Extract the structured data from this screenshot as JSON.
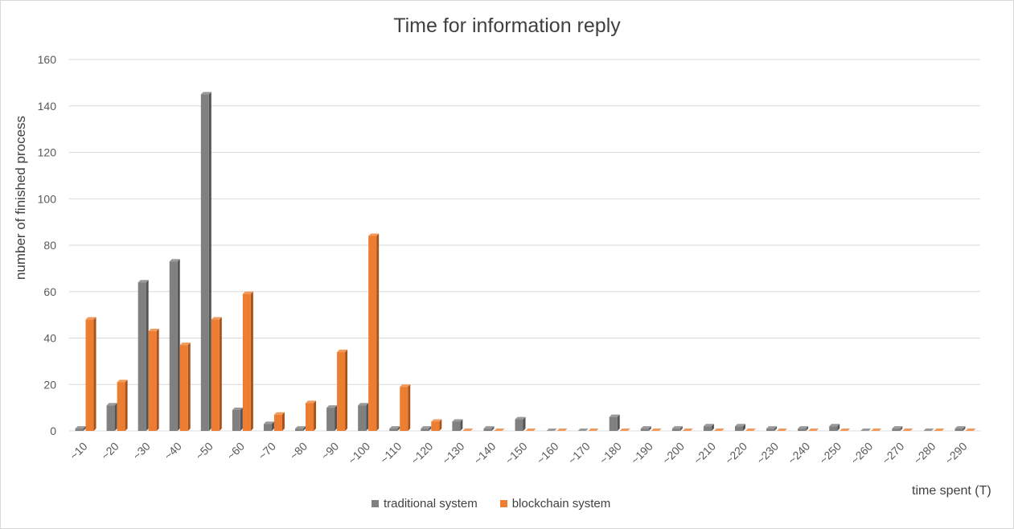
{
  "chart_data": {
    "type": "bar",
    "title": "Time for information reply",
    "xlabel": "time spent (T)",
    "ylabel": "number of finished process",
    "ylim": [
      0,
      160
    ],
    "yticks": [
      0,
      20,
      40,
      60,
      80,
      100,
      120,
      140,
      160
    ],
    "grid": true,
    "legend_position": "bottom",
    "categories": [
      "~10",
      "~20",
      "~30",
      "~40",
      "~50",
      "~60",
      "~70",
      "~80",
      "~90",
      "~100",
      "~110",
      "~120",
      "~130",
      "~140",
      "~150",
      "~160",
      "~170",
      "~180",
      "~190",
      "~200",
      "~210",
      "~220",
      "~230",
      "~240",
      "~250",
      "~260",
      "~270",
      "~280",
      "~290"
    ],
    "series": [
      {
        "name": "traditional system",
        "color": "#808080",
        "values": [
          1,
          11,
          64,
          73,
          145,
          9,
          3,
          1,
          10,
          11,
          1,
          1,
          4,
          1,
          5,
          0,
          0,
          6,
          1,
          1,
          2,
          2,
          1,
          1,
          2,
          0,
          1,
          0,
          1
        ]
      },
      {
        "name": "blockchain system",
        "color": "#ed7d31",
        "values": [
          48,
          21,
          43,
          37,
          48,
          59,
          7,
          12,
          34,
          84,
          19,
          4,
          0,
          0,
          0,
          0,
          0,
          0,
          0,
          0,
          0,
          0,
          0,
          0,
          0,
          0,
          0,
          0,
          0
        ]
      }
    ]
  }
}
